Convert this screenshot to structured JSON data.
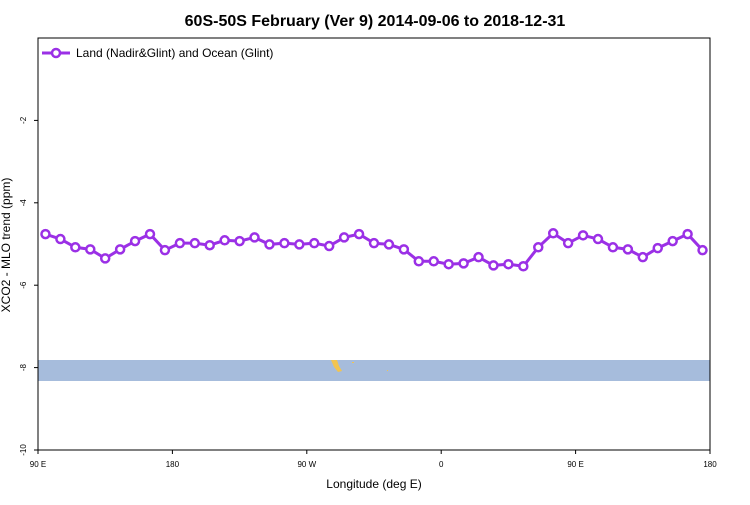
{
  "chart_data": {
    "type": "line",
    "title": "60S-50S February (Ver 9)   2014-09-06 to 2018-12-31",
    "x_label": "Longitude (deg E)",
    "y_label": "XCO2 - MLO trend (ppm)",
    "x": [
      95,
      105,
      115,
      125,
      135,
      145,
      155,
      165,
      175,
      185,
      195,
      205,
      215,
      225,
      235,
      245,
      255,
      265,
      275,
      285,
      295,
      305,
      315,
      325,
      335,
      345,
      355,
      365,
      375,
      385,
      395,
      405,
      415,
      425,
      435,
      445,
      455,
      465,
      475,
      485,
      495,
      505,
      515,
      525,
      535
    ],
    "series": [
      {
        "name": "Land (Nadir&Glint) and Ocean (Glint)",
        "color": "#9b30e6",
        "values": [
          -4.76,
          -4.88,
          -5.08,
          -5.13,
          -5.35,
          -5.13,
          -4.93,
          -4.76,
          -5.15,
          -4.98,
          -4.98,
          -5.03,
          -4.91,
          -4.93,
          -4.84,
          -5.01,
          -4.98,
          -5.01,
          -4.98,
          -5.05,
          -4.84,
          -4.76,
          -4.98,
          -5.01,
          -5.13,
          -5.42,
          -5.42,
          -5.49,
          -5.47,
          -5.32,
          -5.52,
          -5.49,
          -5.54,
          -5.08,
          -4.74,
          -4.98,
          -4.79,
          -4.88,
          -5.08,
          -5.13,
          -5.32,
          -5.1,
          -4.93,
          -4.76,
          -5.15
        ]
      }
    ],
    "xlim": [
      90,
      540
    ],
    "xticks": [
      {
        "value": 90,
        "label": "90 E"
      },
      180,
      {
        "value": 270,
        "label": "90 W"
      },
      {
        "value": 360,
        "label": "0"
      },
      {
        "value": 450,
        "label": "90 E"
      },
      {
        "value": 540,
        "label": "180"
      }
    ],
    "ylim": [
      -10,
      0
    ],
    "yticks": [
      -10,
      -8,
      -6,
      -4,
      -2
    ],
    "legend": "top-left"
  }
}
